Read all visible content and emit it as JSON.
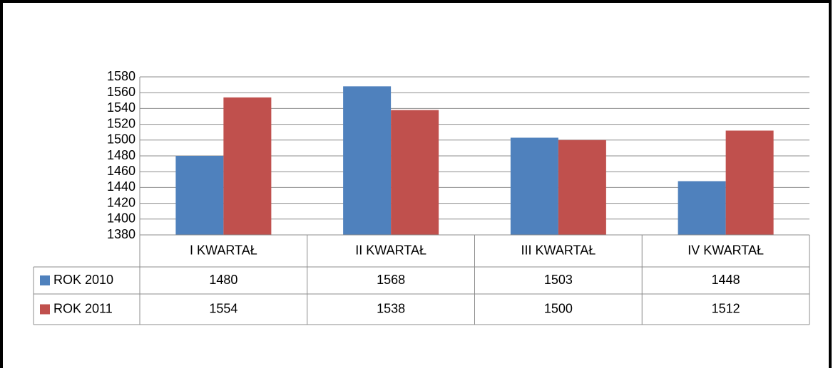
{
  "chart_data": {
    "type": "bar",
    "categories": [
      "I KWARTAŁ",
      "II KWARTAŁ",
      "III KWARTAŁ",
      "IV KWARTAŁ"
    ],
    "series": [
      {
        "name": "ROK 2010",
        "color": "#4f81bd",
        "values": [
          1480,
          1568,
          1503,
          1448
        ]
      },
      {
        "name": "ROK 2011",
        "color": "#c0504d",
        "values": [
          1554,
          1538,
          1500,
          1512
        ]
      }
    ],
    "ylim": [
      1380,
      1580
    ],
    "yticks": [
      1380,
      1400,
      1420,
      1440,
      1460,
      1480,
      1500,
      1520,
      1540,
      1560,
      1580
    ],
    "grid": true
  }
}
